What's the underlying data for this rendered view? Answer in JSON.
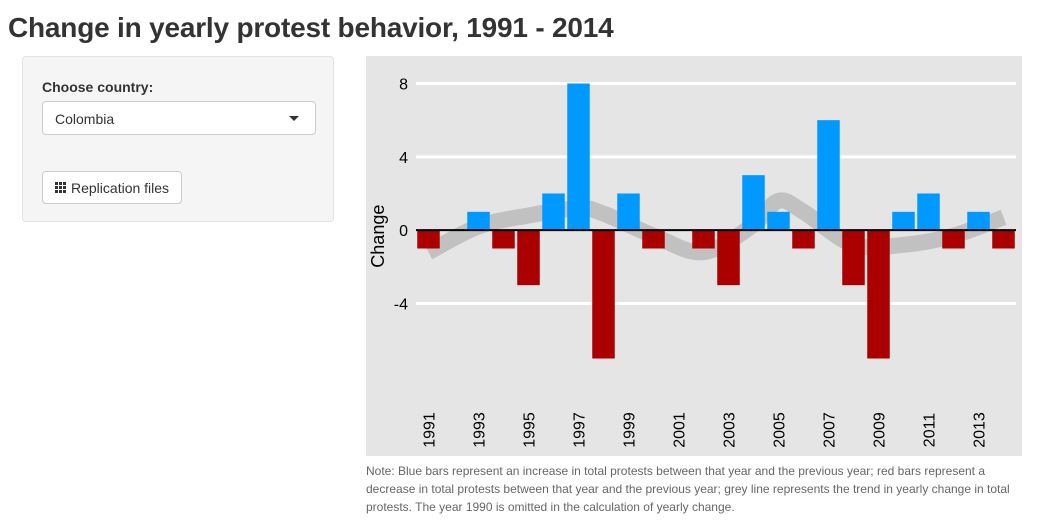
{
  "page": {
    "title": "Change in yearly protest behavior, 1991 - 2014"
  },
  "sidebar": {
    "country_label": "Choose country:",
    "country_value": "Colombia",
    "replication_button": "Replication files"
  },
  "note": "Note: Blue bars represent an increase in total protests between that year and the previous year; red bars represent a decrease in total protests between that year and the previous year; grey line represents the trend in yearly change in total protests. The year 1990 is omitted in the calculation of yearly change.",
  "colors": {
    "increase": "#0099ff",
    "decrease": "#aa0000",
    "trend": "#bdbdbd",
    "panel": "#e5e5e5",
    "grid": "#ffffff",
    "zero_line": "#000000"
  },
  "chart_data": {
    "type": "bar",
    "ylabel": "Change",
    "xlabel": "",
    "ylim": [
      -8.5,
      9.5
    ],
    "yticks": [
      -4,
      0,
      4,
      8
    ],
    "ytick_labels": [
      "-4",
      "0",
      "4",
      "8"
    ],
    "xtick_labels": [
      "1991",
      "1993",
      "1995",
      "1997",
      "1999",
      "2001",
      "2003",
      "2005",
      "2007",
      "2009",
      "2011",
      "2013"
    ],
    "grid": true,
    "categories": [
      1991,
      1992,
      1993,
      1994,
      1995,
      1996,
      1997,
      1998,
      1999,
      2000,
      2001,
      2002,
      2003,
      2004,
      2005,
      2006,
      2007,
      2008,
      2009,
      2010,
      2011,
      2012,
      2013,
      2014
    ],
    "values": [
      -1,
      0,
      1,
      -1,
      -3,
      2,
      8,
      -7,
      2,
      -1,
      0,
      -1,
      -3,
      3,
      1,
      -1,
      6,
      -3,
      -7,
      1,
      2,
      -1,
      1,
      -1
    ],
    "trend": {
      "x": [
        1991,
        1993,
        1995,
        1997,
        1998,
        2000,
        2002,
        2004,
        2005,
        2006,
        2008,
        2010,
        2012,
        2014
      ],
      "y": [
        -1.2,
        0.2,
        0.8,
        1.2,
        0.9,
        -0.3,
        -1.2,
        0.3,
        1.6,
        1.0,
        -0.8,
        -0.8,
        -0.3,
        0.7
      ]
    }
  }
}
